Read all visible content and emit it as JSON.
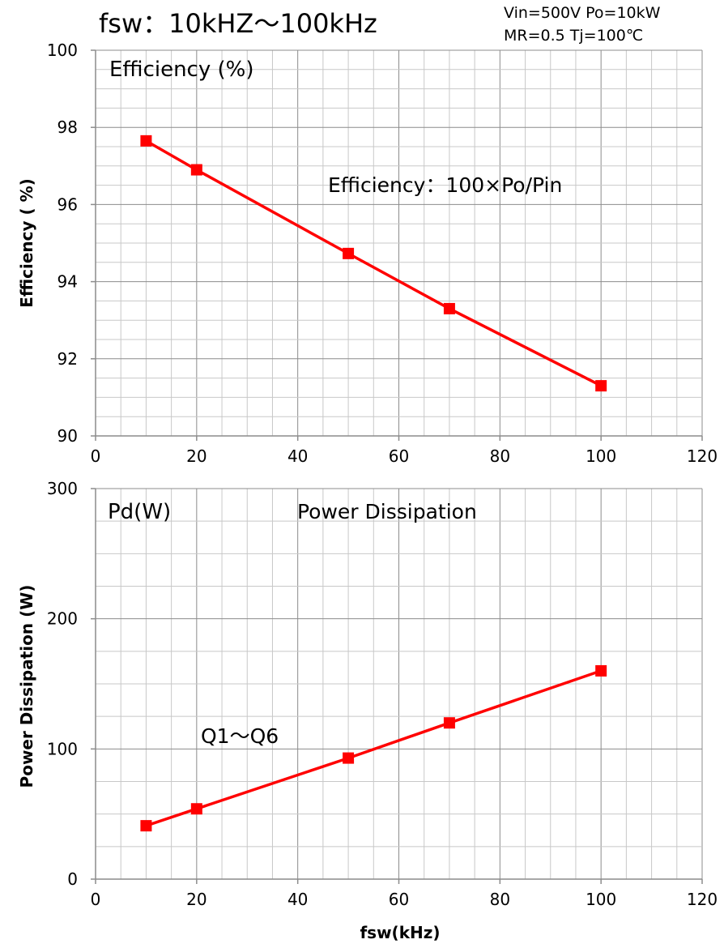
{
  "header": {
    "title": "fsw：10kHZ～100kHz",
    "conditions_line1": "Vin=500V Po=10kW",
    "conditions_line2": "MR=0.5 Tj=100℃"
  },
  "chart_data": [
    {
      "type": "line",
      "ylabel": "Efficiency ( %)",
      "xlim": [
        0,
        120
      ],
      "ylim": [
        90,
        100
      ],
      "x_ticks": [
        "0",
        "20",
        "40",
        "60",
        "80",
        "100",
        "120"
      ],
      "y_ticks": [
        "90",
        "92",
        "94",
        "96",
        "98",
        "100"
      ],
      "x_step": 20,
      "y_step": 2,
      "annotations": {
        "corner": "Efficiency (%)",
        "formula": "Efficiency：100×Po/Pin"
      },
      "grid": true,
      "series": [
        {
          "x": [
            10,
            20,
            50,
            70,
            100
          ],
          "values": [
            97.65,
            96.9,
            94.73,
            93.3,
            91.3
          ]
        }
      ]
    },
    {
      "type": "line",
      "ylabel": "Power Dissipation (W)",
      "xlabel": "fsw(kHz)",
      "xlim": [
        0,
        120
      ],
      "ylim": [
        0,
        300
      ],
      "x_ticks": [
        "0",
        "20",
        "40",
        "60",
        "80",
        "100",
        "120"
      ],
      "y_ticks": [
        "0",
        "100",
        "200",
        "300"
      ],
      "x_step": 20,
      "y_step": 100,
      "annotations": {
        "corner": "Pd(W)",
        "title": "Power Dissipation",
        "series_label": "Q1～Q6"
      },
      "grid": true,
      "series": [
        {
          "x": [
            10,
            20,
            50,
            70,
            100
          ],
          "values": [
            41,
            54,
            93,
            120,
            160
          ]
        }
      ]
    }
  ],
  "colors": {
    "series": "#ff0000",
    "grid_major": "#8c8c8c",
    "grid_minor": "#c8c8c8"
  }
}
